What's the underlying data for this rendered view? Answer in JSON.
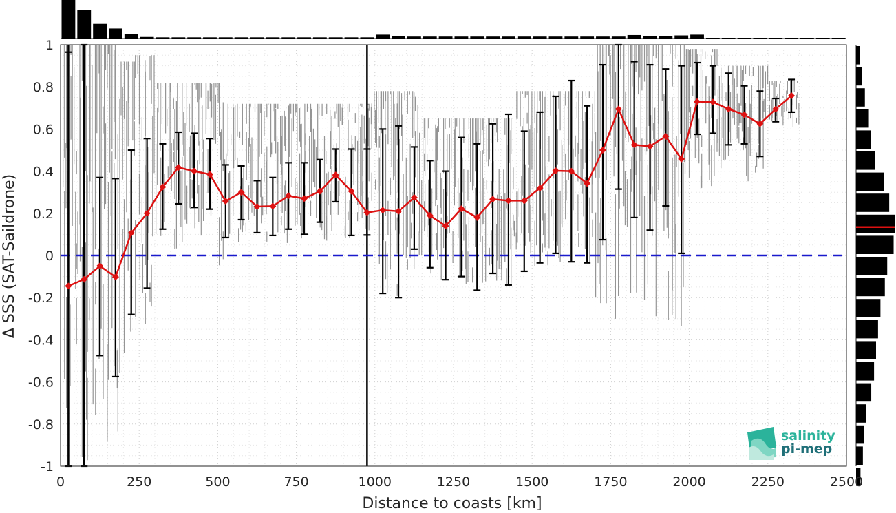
{
  "chart_data": {
    "type": "line",
    "xlabel": "Distance to coasts [km]",
    "ylabel": "Δ SSS (SAT-Saildrone)",
    "xlim": [
      0,
      2500
    ],
    "ylim": [
      -1,
      1
    ],
    "xticks": [
      "0",
      "250",
      "500",
      "750",
      "1000",
      "1250",
      "1500",
      "1750",
      "2000",
      "2250",
      "2500"
    ],
    "yticks": [
      "-1",
      "-0.8",
      "-0.6",
      "-0.4",
      "-0.2",
      "0",
      "0.2",
      "0.4",
      "0.6",
      "0.8",
      "1"
    ],
    "grid": true,
    "zero_line": {
      "y": 0,
      "style": "dashed",
      "color": "#1a1acc"
    },
    "vertical_lines_x": [
      25,
      75,
      975
    ],
    "series": [
      {
        "color": "#dd1111",
        "marker": "diamond",
        "x": [
          25,
          75,
          125,
          175,
          225,
          275,
          325,
          375,
          425,
          475,
          525,
          575,
          625,
          675,
          725,
          775,
          825,
          875,
          925,
          975,
          1025,
          1075,
          1125,
          1175,
          1225,
          1275,
          1325,
          1375,
          1425,
          1475,
          1525,
          1575,
          1625,
          1675,
          1725,
          1775,
          1825,
          1875,
          1925,
          1975,
          2025,
          2075,
          2125,
          2175,
          2225,
          2275,
          2325
        ],
        "y": [
          -0.145,
          -0.113,
          -0.05,
          -0.102,
          0.107,
          0.2,
          0.325,
          0.418,
          0.4,
          0.385,
          0.258,
          0.3,
          0.232,
          0.234,
          0.283,
          0.27,
          0.305,
          0.382,
          0.305,
          0.204,
          0.215,
          0.21,
          0.275,
          0.19,
          0.14,
          0.222,
          0.18,
          0.267,
          0.26,
          0.26,
          0.32,
          0.402,
          0.4,
          0.342,
          0.5,
          0.695,
          0.525,
          0.518,
          0.565,
          0.458,
          0.73,
          0.728,
          0.695,
          0.668,
          0.625,
          0.695,
          0.758
        ],
        "err_low": [
          -1.0,
          -1.0,
          -0.475,
          -0.575,
          -0.28,
          -0.155,
          0.125,
          0.245,
          0.228,
          0.22,
          0.085,
          0.17,
          0.108,
          0.095,
          0.125,
          0.1,
          0.158,
          0.255,
          0.095,
          0.097,
          -0.18,
          -0.2,
          0.03,
          -0.058,
          -0.115,
          -0.1,
          -0.165,
          -0.085,
          -0.14,
          -0.075,
          -0.035,
          0.01,
          -0.03,
          -0.035,
          0.075,
          0.315,
          0.18,
          0.12,
          0.235,
          0.01,
          0.575,
          0.58,
          0.525,
          0.53,
          0.47,
          0.635,
          0.68
        ],
        "err_high": [
          0.965,
          1.0,
          0.37,
          0.365,
          0.5,
          0.555,
          0.53,
          0.585,
          0.58,
          0.555,
          0.43,
          0.425,
          0.355,
          0.37,
          0.44,
          0.44,
          0.455,
          0.505,
          0.505,
          0.505,
          0.6,
          0.615,
          0.515,
          0.45,
          0.4,
          0.56,
          0.53,
          0.625,
          0.67,
          0.59,
          0.68,
          0.755,
          0.83,
          0.71,
          0.905,
          1.0,
          0.92,
          0.905,
          0.885,
          0.9,
          0.915,
          0.9,
          0.865,
          0.805,
          0.78,
          0.745,
          0.835
        ]
      }
    ],
    "scatter_ranges": [
      {
        "x0": 5,
        "x1": 190,
        "lo": -1.0,
        "hi": 1.0,
        "density": 900
      },
      {
        "x0": 190,
        "x1": 235,
        "lo": -0.55,
        "hi": 0.92,
        "density": 180
      },
      {
        "x0": 235,
        "x1": 300,
        "lo": -0.35,
        "hi": 0.95,
        "density": 140
      },
      {
        "x0": 300,
        "x1": 520,
        "lo": -0.05,
        "hi": 0.82,
        "density": 220
      },
      {
        "x0": 520,
        "x1": 985,
        "lo": 0.05,
        "hi": 0.72,
        "density": 260
      },
      {
        "x0": 985,
        "x1": 1150,
        "lo": -0.2,
        "hi": 0.78,
        "density": 260
      },
      {
        "x0": 1150,
        "x1": 1450,
        "lo": -0.15,
        "hi": 0.65,
        "density": 260
      },
      {
        "x0": 1450,
        "x1": 1700,
        "lo": -0.05,
        "hi": 0.78,
        "density": 260
      },
      {
        "x0": 1700,
        "x1": 1990,
        "lo": -0.35,
        "hi": 1.0,
        "density": 320
      },
      {
        "x0": 1990,
        "x1": 2090,
        "lo": 0.3,
        "hi": 0.98,
        "density": 120
      },
      {
        "x0": 2090,
        "x1": 2250,
        "lo": 0.35,
        "hi": 0.9,
        "density": 120
      },
      {
        "x0": 2250,
        "x1": 2350,
        "lo": 0.6,
        "hi": 0.83,
        "density": 40
      }
    ],
    "top_histogram": {
      "bin_width": 50,
      "counts": [
        1.0,
        0.75,
        0.38,
        0.26,
        0.11,
        0.04,
        0.03,
        0.03,
        0.03,
        0.03,
        0.03,
        0.03,
        0.03,
        0.03,
        0.03,
        0.03,
        0.03,
        0.03,
        0.03,
        0.03,
        0.1,
        0.06,
        0.05,
        0.05,
        0.05,
        0.05,
        0.05,
        0.05,
        0.05,
        0.05,
        0.05,
        0.05,
        0.05,
        0.05,
        0.05,
        0.05,
        0.09,
        0.06,
        0.06,
        0.08,
        0.1,
        0.01,
        0.01,
        0.01,
        0.01,
        0.01,
        0.01,
        0.01,
        0.01,
        0.01
      ]
    },
    "right_histogram": {
      "bin_width": 0.1,
      "bins_from_top": [
        0.1,
        0.14,
        0.22,
        0.32,
        0.37,
        0.48,
        0.7,
        0.83,
        0.97,
        0.94,
        0.78,
        0.72,
        0.61,
        0.55,
        0.5,
        0.45,
        0.38,
        0.25,
        0.19,
        0.17,
        0.11
      ],
      "median_line_y": 0.135,
      "median_line_color": "#dd1111"
    }
  },
  "logo": {
    "line1": "salinity",
    "line2": "pi-mep"
  }
}
